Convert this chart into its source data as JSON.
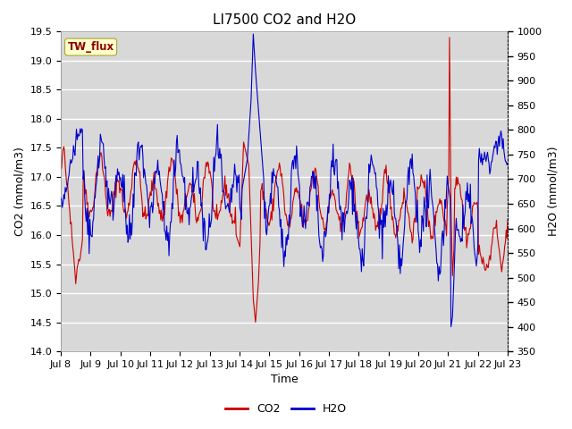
{
  "title": "LI7500 CO2 and H2O",
  "xlabel": "Time",
  "ylabel_left": "CO2 (mmol/m3)",
  "ylabel_right": "H2O (mmol/m3)",
  "site_label": "TW_flux",
  "co2_ylim": [
    14.0,
    19.5
  ],
  "h2o_ylim": [
    350,
    1000
  ],
  "co2_yticks": [
    14.0,
    14.5,
    15.0,
    15.5,
    16.0,
    16.5,
    17.0,
    17.5,
    18.0,
    18.5,
    19.0,
    19.5
  ],
  "h2o_yticks": [
    350,
    400,
    450,
    500,
    550,
    600,
    650,
    700,
    750,
    800,
    850,
    900,
    950,
    1000
  ],
  "xtick_labels": [
    "Jul 8",
    "Jul 9",
    "Jul 10",
    "Jul 11",
    "Jul 12",
    "Jul 13",
    "Jul 14",
    "Jul 15",
    "Jul 16",
    "Jul 17",
    "Jul 18",
    "Jul 19",
    "Jul 20",
    "Jul 21",
    "Jul 22",
    "Jul 23"
  ],
  "co2_color": "#cc0000",
  "h2o_color": "#0000cc",
  "bg_color": "#ffffff",
  "plot_bg_color": "#d8d8d8",
  "grid_color": "#ffffff",
  "title_fontsize": 11,
  "label_fontsize": 9,
  "tick_fontsize": 8,
  "legend_fontsize": 9,
  "linewidth": 0.8
}
